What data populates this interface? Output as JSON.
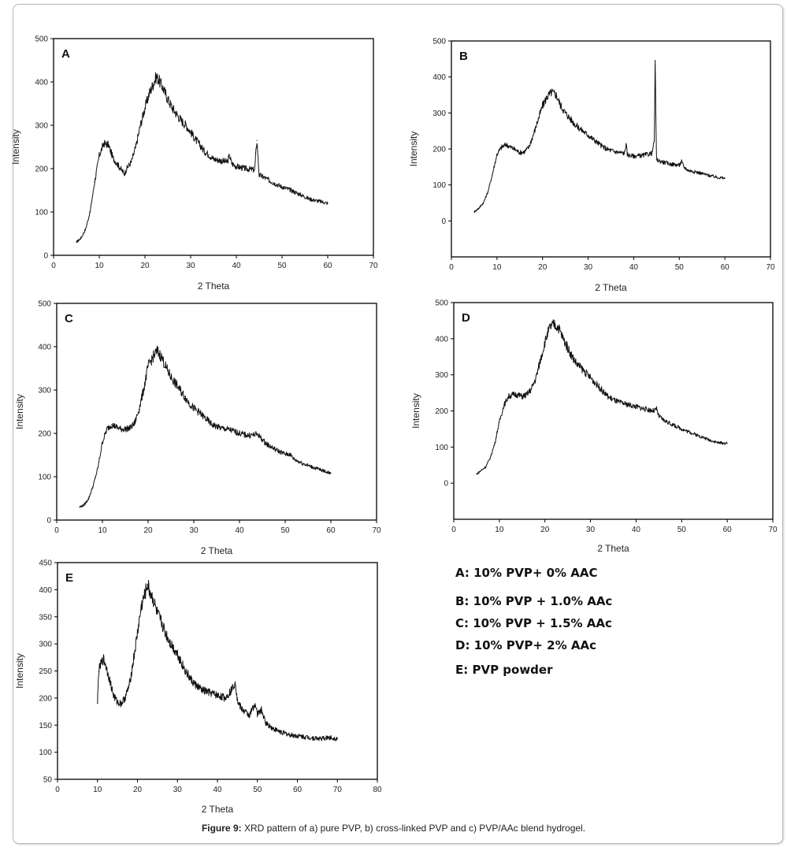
{
  "figure": {
    "caption_label": "Figure 9:",
    "caption_text": " XRD pattern of a) pure PVP, b) cross-linked PVP and c) PVP/AAc blend hydrogel."
  },
  "legend": {
    "items": [
      "A: 10% PVP+ 0% AAC",
      "B: 10% PVP + 1.0% AAc",
      "C:  10% PVP + 1.5% AAc",
      "D: 10% PVP+ 2% AAc",
      "E: PVP powder"
    ]
  },
  "chart_data": [
    {
      "type": "line",
      "panel": "A",
      "title": "A",
      "xlabel": "2 Theta",
      "ylabel": "Intensity",
      "xlim": [
        0,
        70
      ],
      "ylim": [
        0,
        500
      ],
      "xticks": [
        0,
        10,
        20,
        30,
        40,
        50,
        60,
        70
      ],
      "yticks": [
        0,
        100,
        200,
        300,
        400,
        500
      ],
      "grid": false,
      "series": [
        {
          "name": "A: 10% PVP+ 0% AAC",
          "x": [
            5,
            6,
            7,
            8,
            9,
            10,
            11,
            12,
            13,
            14,
            15,
            15.5,
            16,
            17,
            18,
            19,
            20,
            21,
            22,
            22.5,
            23,
            24,
            25,
            26,
            27,
            28,
            29,
            30,
            31,
            32,
            33,
            34,
            35,
            36,
            38,
            38.5,
            39,
            40,
            42,
            44,
            44.5,
            45,
            46,
            48,
            50,
            52,
            54,
            56,
            58,
            60
          ],
          "y": [
            30,
            40,
            60,
            100,
            170,
            230,
            258,
            255,
            225,
            210,
            195,
            188,
            200,
            215,
            250,
            300,
            340,
            375,
            400,
            412,
            405,
            385,
            360,
            340,
            325,
            310,
            300,
            285,
            268,
            255,
            240,
            232,
            222,
            220,
            215,
            230,
            212,
            205,
            200,
            197,
            265,
            185,
            180,
            168,
            158,
            150,
            140,
            130,
            125,
            120
          ]
        }
      ]
    },
    {
      "type": "line",
      "panel": "B",
      "title": "B",
      "xlabel": "2 Theta",
      "ylabel": "Intensity",
      "xlim": [
        0,
        70
      ],
      "ylim": [
        -100,
        500
      ],
      "xticks": [
        0,
        10,
        20,
        30,
        40,
        50,
        60,
        70
      ],
      "yticks": [
        0,
        100,
        200,
        300,
        400,
        500
      ],
      "grid": false,
      "series": [
        {
          "name": "B: 10% PVP + 1.0% AAc",
          "x": [
            5,
            6,
            7,
            8,
            9,
            10,
            11,
            12,
            13,
            14,
            15,
            16,
            17,
            18,
            19,
            20,
            21,
            22,
            23,
            24,
            25,
            26,
            27,
            28,
            29,
            30,
            31,
            32,
            33,
            34,
            35,
            36,
            37,
            38,
            38.3,
            38.6,
            39,
            40,
            42,
            44,
            44.5,
            44.7,
            45,
            46,
            48,
            50,
            50.5,
            51,
            52,
            54,
            56,
            58,
            60
          ],
          "y": [
            25,
            35,
            50,
            80,
            130,
            185,
            205,
            212,
            205,
            198,
            190,
            192,
            205,
            240,
            280,
            320,
            345,
            358,
            350,
            320,
            300,
            285,
            270,
            258,
            248,
            238,
            228,
            218,
            208,
            200,
            196,
            192,
            190,
            188,
            215,
            185,
            182,
            180,
            182,
            188,
            220,
            432,
            170,
            165,
            158,
            155,
            165,
            150,
            140,
            135,
            128,
            122,
            118
          ]
        }
      ]
    },
    {
      "type": "line",
      "panel": "C",
      "title": "C",
      "xlabel": "2 Theta",
      "ylabel": "Intensity",
      "xlim": [
        0,
        70
      ],
      "ylim": [
        0,
        500
      ],
      "xticks": [
        0,
        10,
        20,
        30,
        40,
        50,
        60,
        70
      ],
      "yticks": [
        0,
        100,
        200,
        300,
        400,
        500
      ],
      "grid": false,
      "series": [
        {
          "name": "C:  10% PVP + 1.5% AAc",
          "x": [
            5,
            6,
            7,
            8,
            9,
            10,
            11,
            12,
            13,
            14,
            15,
            16,
            17,
            18,
            19,
            20,
            21,
            22,
            23,
            24,
            25,
            26,
            27,
            28,
            29,
            30,
            31,
            32,
            33,
            34,
            36,
            38,
            40,
            42,
            44,
            45,
            46,
            48,
            50,
            51,
            52,
            54,
            56,
            58,
            60
          ],
          "y": [
            30,
            35,
            50,
            80,
            120,
            180,
            210,
            220,
            215,
            210,
            210,
            212,
            222,
            255,
            300,
            355,
            375,
            390,
            375,
            350,
            330,
            315,
            300,
            285,
            270,
            258,
            250,
            240,
            230,
            220,
            212,
            208,
            200,
            195,
            198,
            185,
            175,
            162,
            152,
            152,
            140,
            130,
            122,
            115,
            108
          ]
        }
      ]
    },
    {
      "type": "line",
      "panel": "D",
      "title": "D",
      "xlabel": "2 Theta",
      "ylabel": "Intensity",
      "xlim": [
        0,
        70
      ],
      "ylim": [
        -100,
        500
      ],
      "xticks": [
        0,
        10,
        20,
        30,
        40,
        50,
        60,
        70
      ],
      "yticks": [
        0,
        100,
        200,
        300,
        400,
        500
      ],
      "grid": false,
      "series": [
        {
          "name": "D: 10% PVP+ 2% AAc",
          "x": [
            5,
            6,
            7,
            8,
            9,
            10,
            11,
            12,
            13,
            14,
            15,
            16,
            17,
            18,
            19,
            20,
            21,
            22,
            23,
            24,
            25,
            26,
            27,
            28,
            29,
            30,
            31,
            32,
            33,
            34,
            36,
            38,
            40,
            42,
            44,
            44.5,
            45,
            46,
            48,
            50,
            52,
            54,
            56,
            58,
            60
          ],
          "y": [
            25,
            35,
            45,
            70,
            110,
            170,
            215,
            240,
            245,
            245,
            240,
            245,
            260,
            290,
            340,
            390,
            430,
            440,
            430,
            400,
            375,
            350,
            330,
            318,
            305,
            292,
            278,
            265,
            250,
            238,
            225,
            218,
            212,
            205,
            200,
            205,
            185,
            175,
            162,
            150,
            140,
            130,
            120,
            112,
            110
          ]
        }
      ]
    },
    {
      "type": "line",
      "panel": "E",
      "title": "E",
      "xlabel": "2 Theta",
      "ylabel": "Intensity",
      "xlim": [
        0,
        80
      ],
      "ylim": [
        50,
        450
      ],
      "xticks": [
        0,
        10,
        20,
        30,
        40,
        50,
        60,
        70,
        80
      ],
      "yticks": [
        50,
        100,
        150,
        200,
        250,
        300,
        350,
        400,
        450
      ],
      "grid": false,
      "series": [
        {
          "name": "E: PVP powder",
          "x": [
            10,
            10.3,
            11,
            11.5,
            12,
            13,
            14,
            15,
            16,
            17,
            18,
            19,
            20,
            21,
            22,
            22.5,
            23,
            24,
            25,
            26,
            27,
            28,
            29,
            30,
            31,
            32,
            33,
            34,
            36,
            38,
            40,
            42,
            43.5,
            44.5,
            45,
            46,
            48,
            49.4,
            50,
            51,
            52,
            54,
            56,
            58,
            60,
            62,
            64,
            66,
            68,
            70
          ],
          "y": [
            190,
            250,
            265,
            272,
            262,
            235,
            205,
            192,
            190,
            202,
            225,
            270,
            320,
            370,
            395,
            410,
            398,
            380,
            355,
            340,
            320,
            305,
            292,
            282,
            265,
            250,
            238,
            228,
            215,
            210,
            205,
            200,
            215,
            230,
            195,
            180,
            168,
            190,
            170,
            178,
            155,
            143,
            137,
            132,
            130,
            128,
            126,
            125,
            127,
            125
          ]
        }
      ]
    }
  ]
}
